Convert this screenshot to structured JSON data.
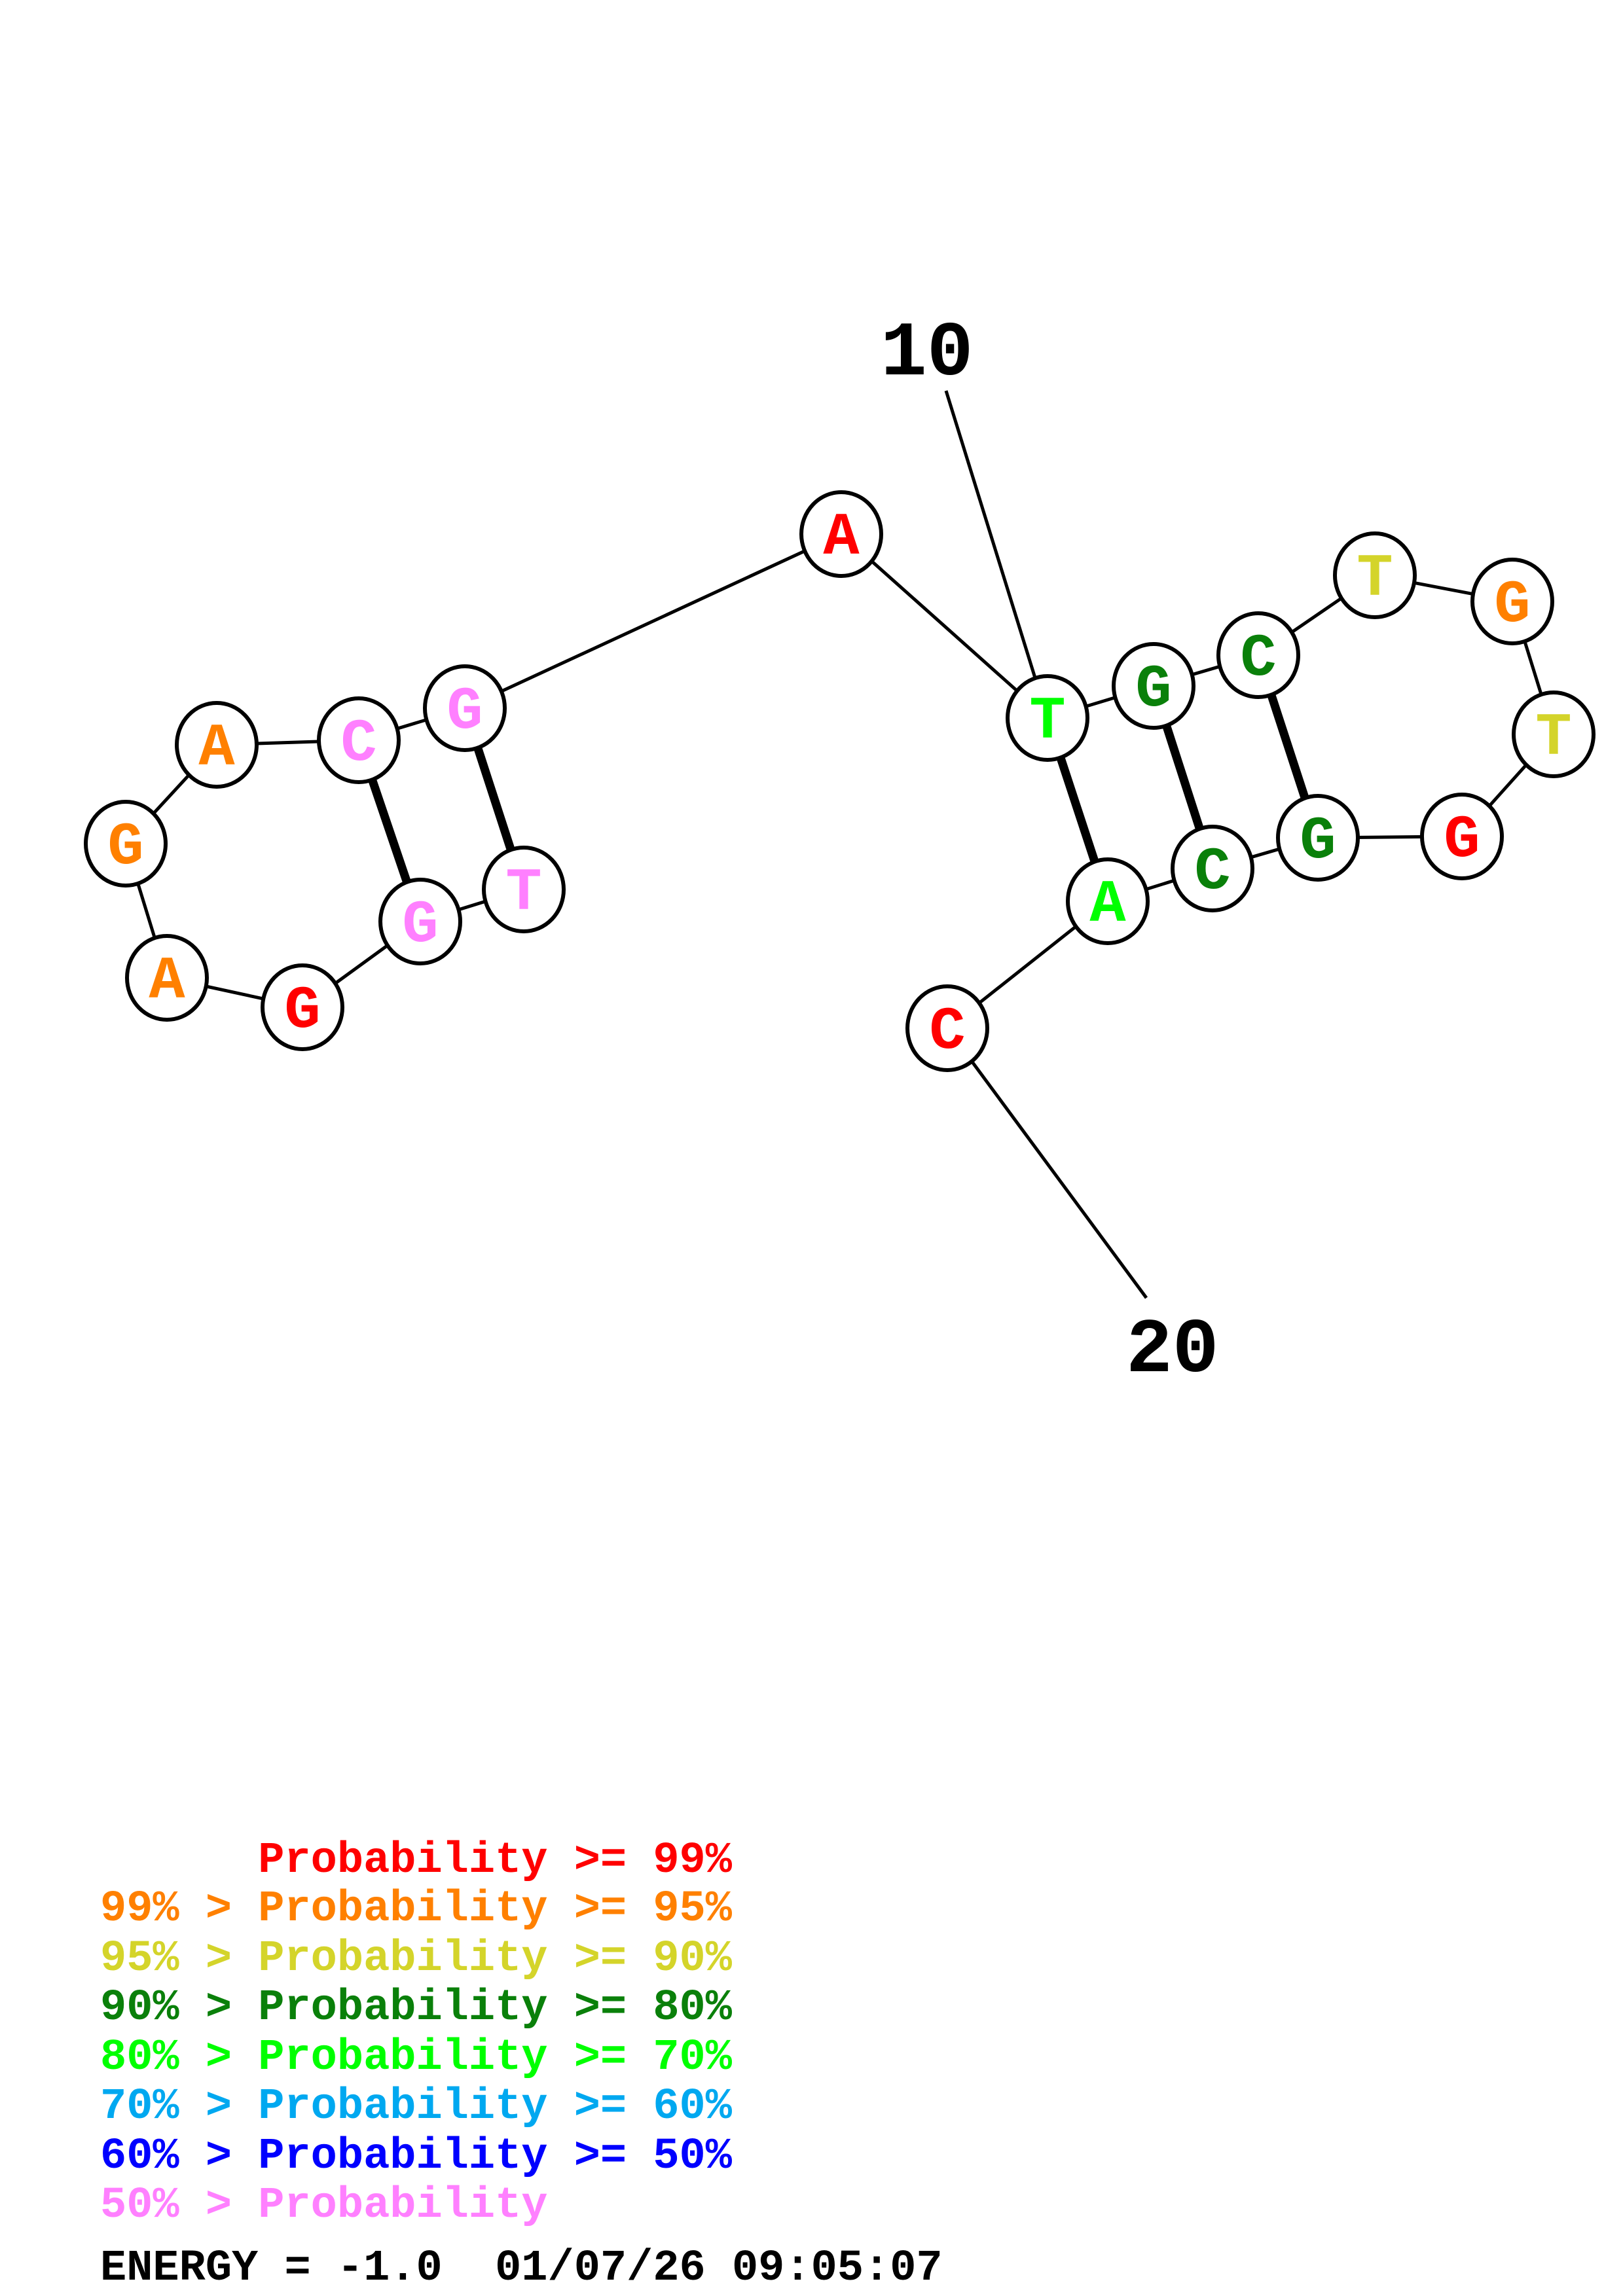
{
  "colors": {
    "p99": "#ff0000",
    "p95": "#ff8000",
    "p90": "#d4d42a",
    "p80": "#0a800a",
    "p70": "#00ff00",
    "p60": "#00a8f0",
    "p50": "#0000ff",
    "plow": "#ff80ff"
  },
  "structure": {
    "sequence": "TGGAGACGATGCTGTGGCAC",
    "nucleotides": [
      {
        "index": 1,
        "base": "T",
        "prob_class": "plow"
      },
      {
        "index": 2,
        "base": "G",
        "prob_class": "plow"
      },
      {
        "index": 3,
        "base": "G",
        "prob_class": "p99"
      },
      {
        "index": 4,
        "base": "A",
        "prob_class": "p95"
      },
      {
        "index": 5,
        "base": "G",
        "prob_class": "p95"
      },
      {
        "index": 6,
        "base": "A",
        "prob_class": "p95"
      },
      {
        "index": 7,
        "base": "C",
        "prob_class": "plow"
      },
      {
        "index": 8,
        "base": "G",
        "prob_class": "plow"
      },
      {
        "index": 9,
        "base": "A",
        "prob_class": "p99"
      },
      {
        "index": 10,
        "base": "T",
        "prob_class": "p70"
      },
      {
        "index": 11,
        "base": "G",
        "prob_class": "p80"
      },
      {
        "index": 12,
        "base": "C",
        "prob_class": "p80"
      },
      {
        "index": 13,
        "base": "T",
        "prob_class": "p90"
      },
      {
        "index": 14,
        "base": "G",
        "prob_class": "p95"
      },
      {
        "index": 15,
        "base": "T",
        "prob_class": "p90"
      },
      {
        "index": 16,
        "base": "G",
        "prob_class": "p99"
      },
      {
        "index": 17,
        "base": "G",
        "prob_class": "p80"
      },
      {
        "index": 18,
        "base": "C",
        "prob_class": "p80"
      },
      {
        "index": 19,
        "base": "A",
        "prob_class": "p70"
      },
      {
        "index": 20,
        "base": "C",
        "prob_class": "p99"
      }
    ],
    "pairs": [
      [
        1,
        8
      ],
      [
        2,
        7
      ],
      [
        10,
        19
      ],
      [
        11,
        18
      ],
      [
        12,
        17
      ]
    ],
    "index_labels": [
      {
        "index": 10,
        "text": "10"
      },
      {
        "index": 20,
        "text": "20"
      }
    ]
  },
  "legend": [
    {
      "text": "      Probability >= 99%",
      "color": "p99"
    },
    {
      "text": "99% > Probability >= 95%",
      "color": "p95"
    },
    {
      "text": "95% > Probability >= 90%",
      "color": "p90"
    },
    {
      "text": "90% > Probability >= 80%",
      "color": "p80"
    },
    {
      "text": "80% > Probability >= 70%",
      "color": "p70"
    },
    {
      "text": "70% > Probability >= 60%",
      "color": "p60"
    },
    {
      "text": "60% > Probability >= 50%",
      "color": "p50"
    },
    {
      "text": "50% > Probability",
      "color": "plow"
    }
  ],
  "footer": {
    "energy": "ENERGY = -1.0  01/07/26 09:05:07"
  }
}
